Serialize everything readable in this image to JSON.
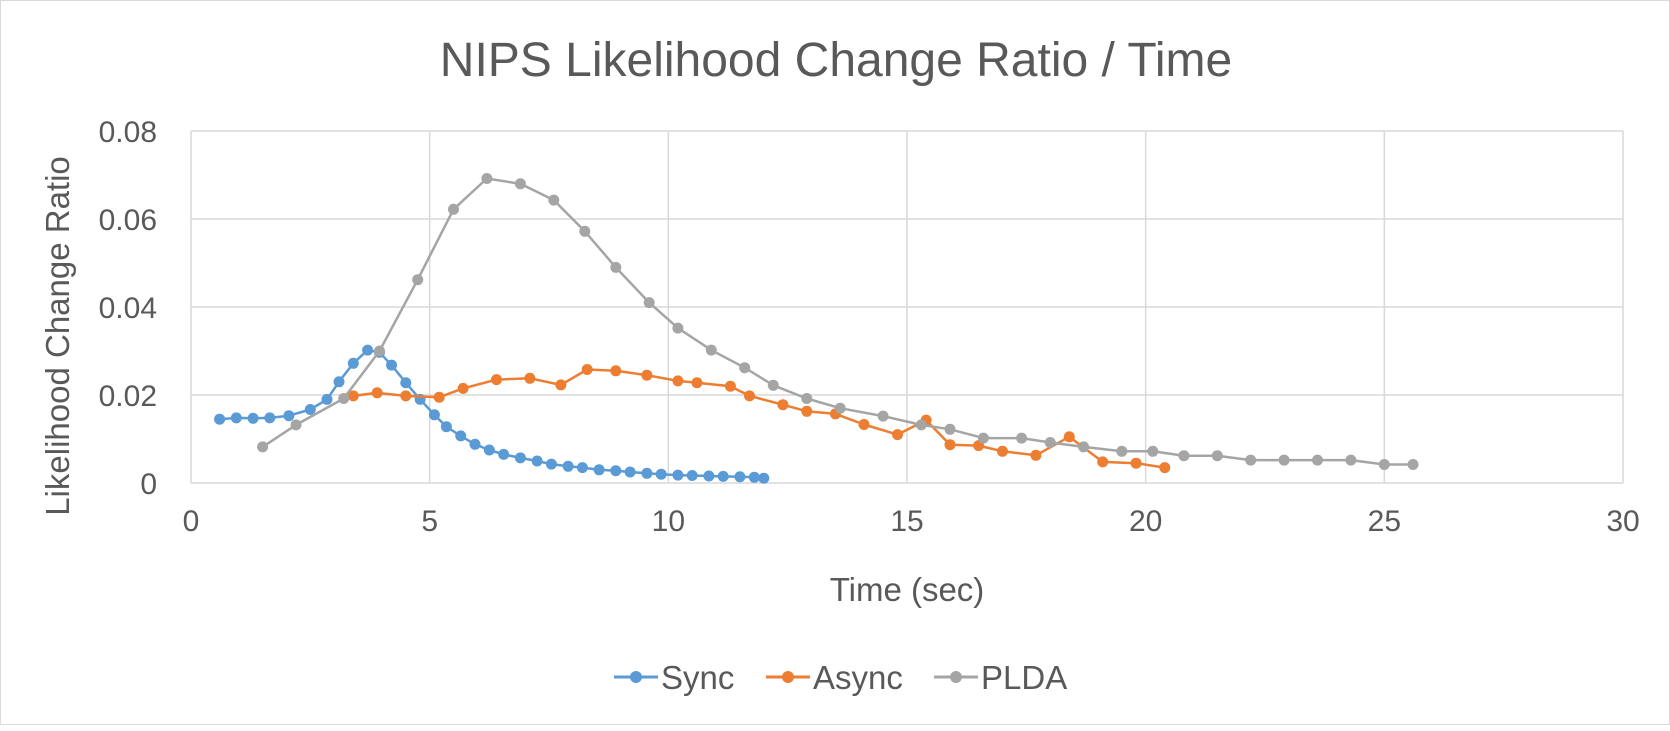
{
  "chart_data": {
    "type": "line",
    "title": "NIPS Likelihood Change Ratio / Time",
    "xlabel": "Time (sec)",
    "ylabel": "Likelihood Change Ratio",
    "xlim": [
      0,
      30
    ],
    "ylim": [
      0,
      0.08
    ],
    "x_ticks": [
      0,
      5,
      10,
      15,
      20,
      25,
      30
    ],
    "y_ticks": [
      0,
      0.02,
      0.04,
      0.06,
      0.08
    ],
    "x_tick_labels": [
      "0",
      "5",
      "10",
      "15",
      "20",
      "25",
      "30"
    ],
    "y_tick_labels": [
      "0",
      "0.02",
      "0.04",
      "0.06",
      "0.08"
    ],
    "grid": true,
    "legend_position": "bottom",
    "series": [
      {
        "name": "Sync",
        "color": "#5b9bd5",
        "points": [
          [
            0.6,
            0.0145
          ],
          [
            0.95,
            0.0148
          ],
          [
            1.3,
            0.0147
          ],
          [
            1.65,
            0.0148
          ],
          [
            2.05,
            0.0153
          ],
          [
            2.5,
            0.0167
          ],
          [
            2.85,
            0.019
          ],
          [
            3.1,
            0.023
          ],
          [
            3.4,
            0.0272
          ],
          [
            3.7,
            0.0302
          ],
          [
            3.95,
            0.0297
          ],
          [
            4.2,
            0.0268
          ],
          [
            4.5,
            0.0228
          ],
          [
            4.8,
            0.019
          ],
          [
            5.1,
            0.0155
          ],
          [
            5.35,
            0.0128
          ],
          [
            5.65,
            0.0107
          ],
          [
            5.95,
            0.0088
          ],
          [
            6.25,
            0.0075
          ],
          [
            6.55,
            0.0065
          ],
          [
            6.9,
            0.0057
          ],
          [
            7.25,
            0.005
          ],
          [
            7.55,
            0.0043
          ],
          [
            7.9,
            0.0038
          ],
          [
            8.2,
            0.0035
          ],
          [
            8.55,
            0.003
          ],
          [
            8.9,
            0.0028
          ],
          [
            9.2,
            0.0025
          ],
          [
            9.55,
            0.0022
          ],
          [
            9.85,
            0.002
          ],
          [
            10.2,
            0.0018
          ],
          [
            10.5,
            0.0017
          ],
          [
            10.85,
            0.0016
          ],
          [
            11.15,
            0.0015
          ],
          [
            11.5,
            0.0014
          ],
          [
            11.8,
            0.0013
          ],
          [
            12.0,
            0.0011
          ]
        ]
      },
      {
        "name": "Async",
        "color": "#ed7d31",
        "points": [
          [
            3.4,
            0.0198
          ],
          [
            3.9,
            0.0205
          ],
          [
            4.5,
            0.0198
          ],
          [
            5.2,
            0.0195
          ],
          [
            5.7,
            0.0215
          ],
          [
            6.4,
            0.0235
          ],
          [
            7.1,
            0.0238
          ],
          [
            7.75,
            0.0223
          ],
          [
            8.3,
            0.0258
          ],
          [
            8.9,
            0.0255
          ],
          [
            9.55,
            0.0245
          ],
          [
            10.2,
            0.0232
          ],
          [
            10.6,
            0.0228
          ],
          [
            11.3,
            0.022
          ],
          [
            11.7,
            0.0198
          ],
          [
            12.4,
            0.0178
          ],
          [
            12.9,
            0.0163
          ],
          [
            13.5,
            0.0157
          ],
          [
            14.1,
            0.0133
          ],
          [
            14.8,
            0.011
          ],
          [
            15.4,
            0.0143
          ],
          [
            15.9,
            0.0087
          ],
          [
            16.5,
            0.0085
          ],
          [
            17.0,
            0.0072
          ],
          [
            17.7,
            0.0063
          ],
          [
            18.4,
            0.0105
          ],
          [
            19.1,
            0.0048
          ],
          [
            19.8,
            0.0045
          ],
          [
            20.4,
            0.0035
          ]
        ]
      },
      {
        "name": "PLDA",
        "color": "#a5a5a5",
        "points": [
          [
            1.5,
            0.0082
          ],
          [
            2.2,
            0.0132
          ],
          [
            3.2,
            0.0192
          ],
          [
            3.95,
            0.03
          ],
          [
            4.75,
            0.0462
          ],
          [
            5.5,
            0.0622
          ],
          [
            6.2,
            0.0692
          ],
          [
            6.9,
            0.068
          ],
          [
            7.6,
            0.0643
          ],
          [
            8.25,
            0.0572
          ],
          [
            8.9,
            0.049
          ],
          [
            9.6,
            0.041
          ],
          [
            10.2,
            0.0352
          ],
          [
            10.9,
            0.0302
          ],
          [
            11.6,
            0.0262
          ],
          [
            12.2,
            0.0222
          ],
          [
            12.9,
            0.0192
          ],
          [
            13.6,
            0.017
          ],
          [
            14.5,
            0.0152
          ],
          [
            15.3,
            0.0132
          ],
          [
            15.9,
            0.0122
          ],
          [
            16.6,
            0.0102
          ],
          [
            17.4,
            0.0102
          ],
          [
            18.0,
            0.0092
          ],
          [
            18.7,
            0.0082
          ],
          [
            19.5,
            0.0072
          ],
          [
            20.15,
            0.0072
          ],
          [
            20.8,
            0.0062
          ],
          [
            21.5,
            0.0062
          ],
          [
            22.2,
            0.0052
          ],
          [
            22.9,
            0.0052
          ],
          [
            23.6,
            0.0052
          ],
          [
            24.3,
            0.0052
          ],
          [
            25.0,
            0.0042
          ],
          [
            25.6,
            0.0042
          ]
        ]
      }
    ]
  }
}
